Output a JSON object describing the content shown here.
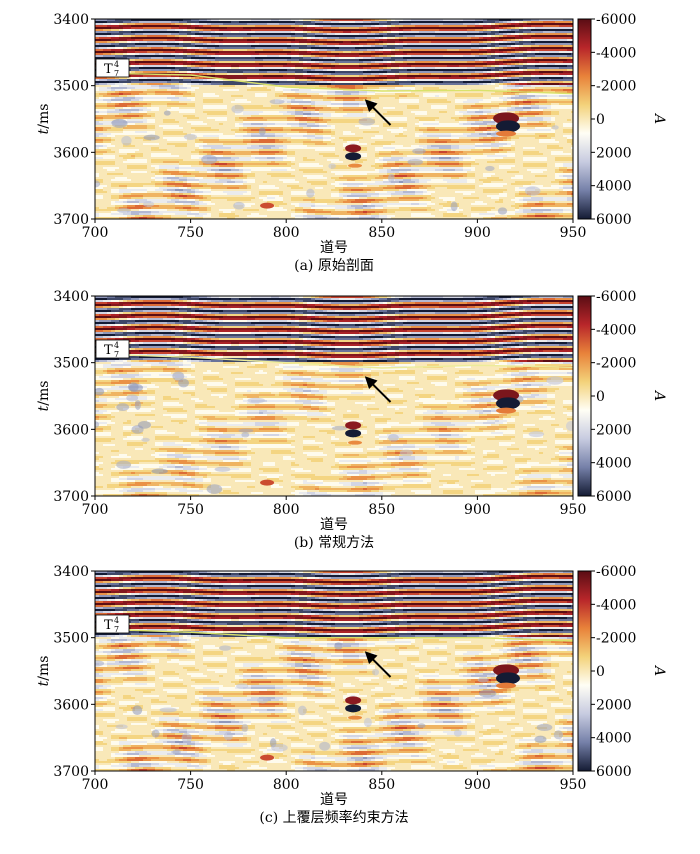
{
  "colorbar": {
    "label": "A",
    "ticks": [
      "-6000",
      "-4000",
      "-2000",
      "0",
      "2000",
      "4000",
      "6000"
    ],
    "colors": [
      "#5a0d14",
      "#b8262a",
      "#e8823a",
      "#f3d27a",
      "#fffef5",
      "#c7cbe0",
      "#7580a8",
      "#141b34"
    ]
  },
  "panels": [
    {
      "id": "a",
      "caption": "(a) 原始剖面",
      "xlabel": "道号",
      "ylabel_italic": "t",
      "ylabel_unit": "/ms",
      "xticks": [
        "700",
        "750",
        "800",
        "850",
        "900",
        "950"
      ],
      "yticks": [
        "3400",
        "3500",
        "3600",
        "3700"
      ],
      "horizon_label": "T",
      "horizon_sup": "4",
      "horizon_sub": "7",
      "horizon_color": "#d9e26a"
    },
    {
      "id": "b",
      "caption": "(b) 常规方法",
      "xlabel": "道号",
      "ylabel_italic": "t",
      "ylabel_unit": "/ms",
      "xticks": [
        "700",
        "750",
        "800",
        "850",
        "900",
        "950"
      ],
      "yticks": [
        "3400",
        "3500",
        "3600",
        "3700"
      ],
      "horizon_label": "T",
      "horizon_sup": "4",
      "horizon_sub": "7",
      "horizon_color": "#ecec9a"
    },
    {
      "id": "c",
      "caption": "(c) 上覆层频率约束方法",
      "xlabel": "道号",
      "ylabel_italic": "t",
      "ylabel_unit": "/ms",
      "xticks": [
        "700",
        "750",
        "800",
        "850",
        "900",
        "950"
      ],
      "yticks": [
        "3400",
        "3500",
        "3600",
        "3700"
      ],
      "horizon_label": "T",
      "horizon_sup": "4",
      "horizon_sub": "7",
      "horizon_color": "#d9e26a"
    }
  ],
  "chart_data": [
    {
      "type": "heatmap",
      "title": "(a) 原始剖面",
      "xlabel": "道号",
      "ylabel": "t/ms",
      "xlim": [
        700,
        950
      ],
      "ylim": [
        3700,
        3400
      ],
      "zlim": [
        -6000,
        6000
      ],
      "colorbar_label": "A",
      "horizon": {
        "name": "T₇⁴",
        "x": [
          700,
          750,
          800,
          850,
          900,
          950
        ],
        "y": [
          3481,
          3484,
          3502,
          3508,
          3507,
          3512
        ]
      },
      "arrow_target": {
        "x": 842,
        "y": 3523
      }
    },
    {
      "type": "heatmap",
      "title": "(b) 常规方法",
      "xlabel": "道号",
      "ylabel": "t/ms",
      "xlim": [
        700,
        950
      ],
      "ylim": [
        3700,
        3400
      ],
      "zlim": [
        -6000,
        6000
      ],
      "colorbar_label": "A",
      "horizon": {
        "name": "T₇⁴",
        "x": [
          700,
          750,
          800,
          850,
          900,
          950
        ],
        "y": [
          3487,
          3492,
          3500,
          3508,
          3504,
          3507
        ]
      },
      "arrow_target": {
        "x": 842,
        "y": 3523
      }
    },
    {
      "type": "heatmap",
      "title": "(c) 上覆层频率约束方法",
      "xlabel": "道号",
      "ylabel": "t/ms",
      "xlim": [
        700,
        950
      ],
      "ylim": [
        3700,
        3400
      ],
      "zlim": [
        -6000,
        6000
      ],
      "colorbar_label": "A",
      "horizon": {
        "name": "T₇⁴",
        "x": [
          700,
          750,
          800,
          850,
          900,
          950
        ],
        "y": [
          3487,
          3492,
          3500,
          3500,
          3500,
          3505
        ]
      },
      "arrow_target": {
        "x": 842,
        "y": 3523
      }
    }
  ]
}
